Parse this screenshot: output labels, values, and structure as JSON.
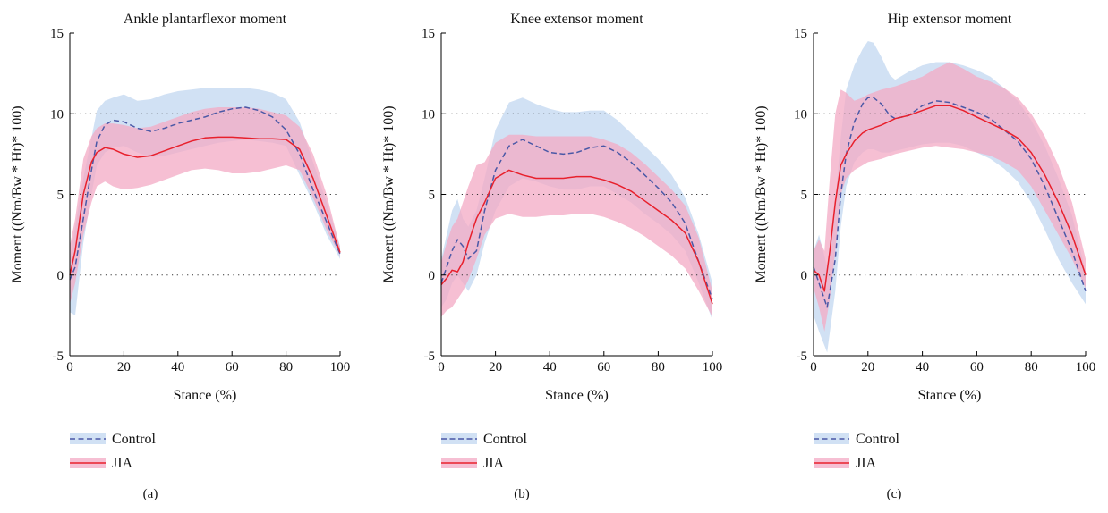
{
  "colors": {
    "control_line": "#4a58a6",
    "control_band": "#c9dcf2",
    "jia_line": "#e8202c",
    "jia_band": "#f3a9c4"
  },
  "chart_data": [
    {
      "type": "line",
      "title": "Ankle plantarflexor moment",
      "xlabel": "Stance (%)",
      "ylabel": "Moment ((Nm/Bw * Ht)* 100)",
      "xlim": [
        0,
        100
      ],
      "ylim": [
        -5,
        15
      ],
      "xticks": [
        0,
        20,
        40,
        60,
        80,
        100
      ],
      "yticks": [
        -5,
        0,
        5,
        10,
        15
      ],
      "grid_y": [
        0,
        5,
        10
      ],
      "panel_label": "(a)",
      "legend": [
        "Control",
        "JIA"
      ],
      "series": [
        {
          "name": "Control",
          "style": "dashed",
          "x": [
            0,
            2,
            5,
            8,
            10,
            13,
            16,
            20,
            25,
            30,
            35,
            40,
            45,
            50,
            55,
            60,
            65,
            70,
            75,
            80,
            85,
            90,
            95,
            100
          ],
          "y": [
            -0.3,
            0.5,
            3.5,
            6.5,
            8.3,
            9.3,
            9.6,
            9.5,
            9.1,
            8.9,
            9.1,
            9.4,
            9.6,
            9.8,
            10.1,
            10.3,
            10.4,
            10.2,
            9.8,
            9.0,
            7.5,
            5.3,
            3.3,
            1.3
          ],
          "lower": [
            -2.3,
            -2.5,
            2.0,
            5.0,
            6.8,
            7.6,
            7.9,
            8.0,
            7.6,
            7.3,
            7.4,
            7.6,
            7.8,
            8.0,
            8.2,
            8.3,
            8.4,
            8.3,
            8.2,
            8.0,
            6.2,
            4.5,
            2.5,
            1.0
          ],
          "upper": [
            1.0,
            3.0,
            6.0,
            8.5,
            10.2,
            10.8,
            11.0,
            11.2,
            10.8,
            10.9,
            11.2,
            11.4,
            11.5,
            11.6,
            11.6,
            11.6,
            11.6,
            11.5,
            11.3,
            10.9,
            9.5,
            7.0,
            4.5,
            1.8
          ]
        },
        {
          "name": "JIA",
          "style": "solid",
          "x": [
            0,
            2,
            5,
            8,
            10,
            13,
            16,
            20,
            25,
            30,
            35,
            40,
            45,
            50,
            55,
            60,
            65,
            70,
            75,
            80,
            85,
            90,
            95,
            100
          ],
          "y": [
            0.0,
            1.5,
            5.0,
            7.0,
            7.6,
            7.9,
            7.8,
            7.5,
            7.3,
            7.4,
            7.7,
            8.0,
            8.3,
            8.5,
            8.55,
            8.55,
            8.5,
            8.45,
            8.45,
            8.4,
            7.8,
            6.0,
            3.7,
            1.4
          ],
          "lower": [
            -1.8,
            -0.5,
            2.5,
            4.5,
            5.5,
            5.8,
            5.5,
            5.3,
            5.4,
            5.6,
            5.9,
            6.2,
            6.5,
            6.6,
            6.5,
            6.3,
            6.3,
            6.4,
            6.6,
            6.8,
            6.5,
            4.8,
            2.8,
            1.2
          ],
          "upper": [
            1.8,
            3.5,
            7.2,
            8.6,
            9.1,
            9.4,
            9.4,
            9.3,
            9.1,
            9.2,
            9.5,
            9.8,
            10.1,
            10.3,
            10.4,
            10.4,
            10.4,
            10.3,
            10.1,
            9.9,
            9.2,
            7.5,
            5.0,
            1.7
          ]
        }
      ]
    },
    {
      "type": "line",
      "title": "Knee extensor moment",
      "xlabel": "Stance (%)",
      "ylabel": "Moment ((Nm/Bw * Ht)* 100)",
      "xlim": [
        0,
        100
      ],
      "ylim": [
        -5,
        15
      ],
      "xticks": [
        0,
        20,
        40,
        60,
        80,
        100
      ],
      "yticks": [
        -5,
        0,
        5,
        10,
        15
      ],
      "grid_y": [
        0,
        5,
        10
      ],
      "panel_label": "(b)",
      "legend": [
        "Control",
        "JIA"
      ],
      "series": [
        {
          "name": "Control",
          "style": "dashed",
          "x": [
            0,
            2,
            4,
            6,
            8,
            10,
            13,
            16,
            20,
            25,
            30,
            35,
            40,
            45,
            50,
            55,
            60,
            65,
            70,
            75,
            80,
            85,
            90,
            95,
            100
          ],
          "y": [
            -0.5,
            0.5,
            1.5,
            2.2,
            1.8,
            1.0,
            1.5,
            4.0,
            6.5,
            8.0,
            8.4,
            8.0,
            7.6,
            7.5,
            7.6,
            7.9,
            8.0,
            7.6,
            7.0,
            6.2,
            5.4,
            4.5,
            3.2,
            0.8,
            -1.5
          ],
          "lower": [
            -2.0,
            -1.5,
            -0.5,
            0.0,
            -0.5,
            -1.0,
            0.0,
            2.0,
            4.0,
            5.5,
            6.0,
            5.8,
            5.5,
            5.3,
            5.3,
            5.5,
            5.5,
            5.0,
            4.5,
            3.8,
            3.2,
            2.5,
            1.5,
            -0.5,
            -2.8
          ],
          "upper": [
            1.0,
            2.5,
            4.0,
            4.7,
            3.5,
            3.0,
            4.0,
            6.0,
            9.0,
            10.7,
            11.0,
            10.6,
            10.3,
            10.1,
            10.1,
            10.2,
            10.2,
            9.6,
            8.8,
            8.0,
            7.2,
            6.2,
            4.8,
            2.5,
            -0.5
          ]
        },
        {
          "name": "JIA",
          "style": "solid",
          "x": [
            0,
            2,
            4,
            6,
            8,
            10,
            13,
            16,
            20,
            25,
            30,
            35,
            40,
            45,
            50,
            55,
            60,
            65,
            70,
            75,
            80,
            85,
            90,
            95,
            100
          ],
          "y": [
            -0.6,
            -0.2,
            0.3,
            0.2,
            0.8,
            2.0,
            3.5,
            4.5,
            6.0,
            6.5,
            6.2,
            6.0,
            6.0,
            6.0,
            6.1,
            6.1,
            5.9,
            5.6,
            5.2,
            4.6,
            4.0,
            3.4,
            2.6,
            0.8,
            -1.8
          ],
          "lower": [
            -2.6,
            -2.2,
            -2.0,
            -1.5,
            -1.0,
            -0.3,
            1.0,
            2.5,
            3.5,
            3.8,
            3.6,
            3.6,
            3.7,
            3.7,
            3.8,
            3.8,
            3.6,
            3.3,
            2.9,
            2.4,
            1.8,
            1.2,
            0.4,
            -1.0,
            -2.6
          ],
          "upper": [
            0.8,
            2.0,
            3.0,
            3.5,
            4.5,
            5.5,
            6.8,
            7.0,
            8.2,
            8.7,
            8.7,
            8.6,
            8.6,
            8.6,
            8.6,
            8.6,
            8.4,
            8.1,
            7.6,
            6.9,
            6.1,
            5.3,
            4.3,
            2.3,
            -1.0
          ]
        }
      ]
    },
    {
      "type": "line",
      "title": "Hip extensor moment",
      "xlabel": "Stance (%)",
      "ylabel": "Moment ((Nm/Bw * Ht)* 100)",
      "xlim": [
        0,
        100
      ],
      "ylim": [
        -5,
        15
      ],
      "xticks": [
        0,
        20,
        40,
        60,
        80,
        100
      ],
      "yticks": [
        -5,
        0,
        5,
        10,
        15
      ],
      "grid_y": [
        0,
        5,
        10
      ],
      "panel_label": "(c)",
      "legend": [
        "Control",
        "JIA"
      ],
      "series": [
        {
          "name": "Control",
          "style": "dashed",
          "x": [
            0,
            2,
            5,
            8,
            10,
            12,
            15,
            18,
            20,
            22,
            25,
            28,
            30,
            35,
            40,
            45,
            50,
            55,
            60,
            65,
            70,
            75,
            80,
            85,
            90,
            95,
            100
          ],
          "y": [
            0.5,
            -0.5,
            -2.0,
            1.0,
            5.0,
            7.5,
            9.5,
            10.6,
            11.0,
            11.0,
            10.6,
            9.9,
            9.7,
            9.9,
            10.5,
            10.8,
            10.7,
            10.4,
            10.1,
            9.7,
            9.0,
            8.3,
            7.2,
            5.5,
            3.5,
            1.5,
            -1.0
          ],
          "lower": [
            -2.5,
            -3.5,
            -4.8,
            -1.0,
            3.0,
            5.5,
            7.0,
            7.6,
            7.8,
            7.8,
            7.6,
            7.6,
            7.7,
            7.9,
            8.1,
            8.2,
            8.2,
            8.0,
            7.6,
            7.2,
            6.6,
            5.8,
            4.5,
            2.8,
            1.0,
            -0.5,
            -1.8
          ],
          "upper": [
            1.5,
            2.5,
            0.5,
            4.5,
            8.5,
            11.5,
            13.0,
            14.0,
            14.5,
            14.4,
            13.5,
            12.4,
            12.1,
            12.6,
            13.0,
            13.2,
            13.2,
            13.0,
            12.7,
            12.3,
            11.6,
            10.8,
            9.6,
            8.0,
            6.0,
            3.7,
            0.2
          ]
        },
        {
          "name": "JIA",
          "style": "solid",
          "x": [
            0,
            2,
            4,
            6,
            8,
            10,
            12,
            15,
            18,
            20,
            25,
            30,
            35,
            40,
            45,
            50,
            55,
            60,
            65,
            70,
            75,
            80,
            85,
            90,
            95,
            100
          ],
          "y": [
            0.3,
            0.0,
            -1.0,
            1.5,
            4.5,
            6.8,
            7.5,
            8.3,
            8.8,
            9.0,
            9.3,
            9.7,
            9.9,
            10.2,
            10.5,
            10.5,
            10.2,
            9.8,
            9.4,
            9.0,
            8.5,
            7.6,
            6.2,
            4.5,
            2.5,
            0.0
          ],
          "lower": [
            -0.8,
            -2.0,
            -3.5,
            -1.5,
            1.5,
            5.0,
            6.0,
            6.5,
            6.8,
            7.0,
            7.2,
            7.5,
            7.7,
            7.9,
            8.0,
            7.9,
            7.8,
            7.6,
            7.4,
            7.0,
            6.5,
            5.5,
            4.0,
            2.5,
            1.0,
            -0.8
          ],
          "upper": [
            1.5,
            2.2,
            1.5,
            6.0,
            10.0,
            11.5,
            11.3,
            10.8,
            11.0,
            11.2,
            11.5,
            11.7,
            12.0,
            12.3,
            12.8,
            13.2,
            12.8,
            12.3,
            12.0,
            11.6,
            11.0,
            10.0,
            8.6,
            6.8,
            4.5,
            1.0
          ]
        }
      ]
    }
  ]
}
